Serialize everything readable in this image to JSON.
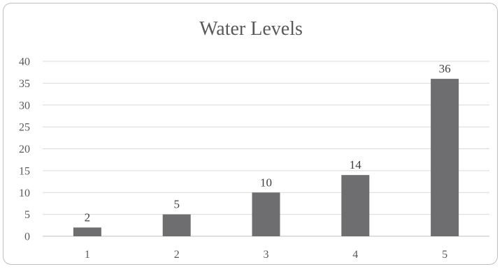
{
  "chart_data": {
    "type": "bar",
    "title": "Water Levels",
    "xlabel": "",
    "ylabel": "",
    "categories": [
      "1",
      "2",
      "3",
      "4",
      "5"
    ],
    "series": [
      {
        "values": [
          2,
          5,
          10,
          14,
          36
        ]
      }
    ],
    "ylim": [
      0,
      40
    ],
    "yticks": [
      0,
      5,
      10,
      15,
      20,
      25,
      30,
      35,
      40
    ],
    "grid": true,
    "legend": "none",
    "data_labels": true,
    "colors": {
      "bar": "#6e6e70",
      "grid": "#d9d9d9",
      "axis": "#bfbfbf"
    }
  }
}
